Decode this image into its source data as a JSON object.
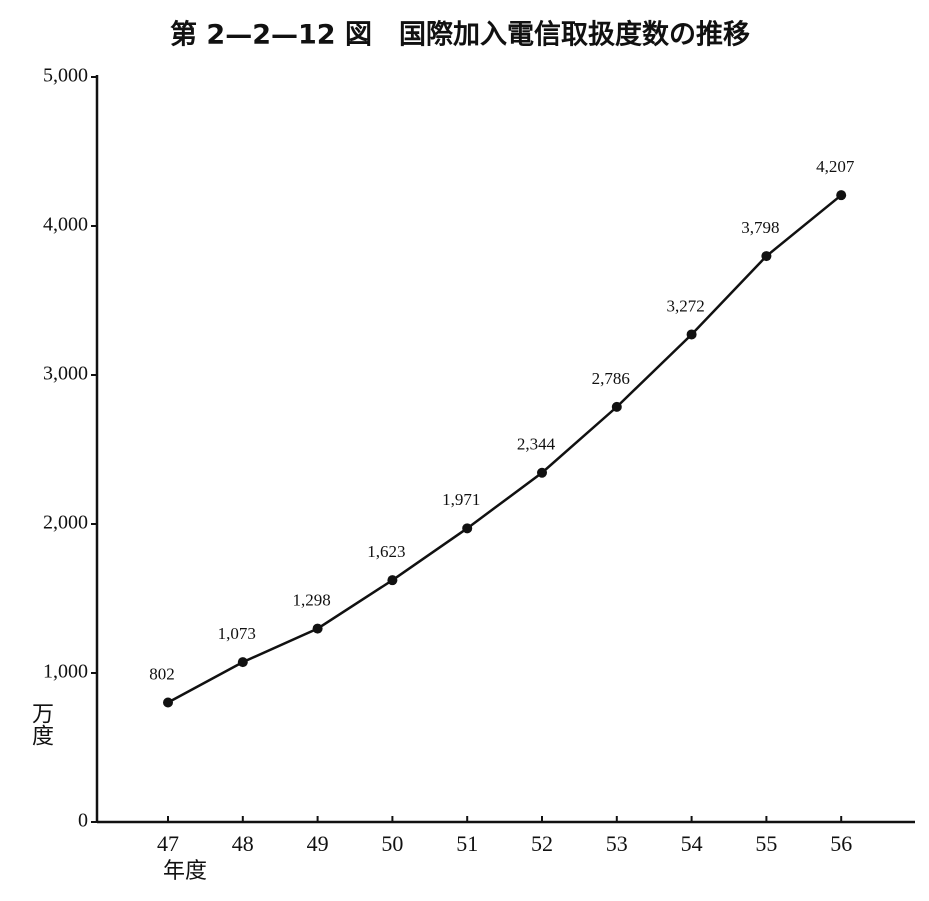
{
  "chart_data": {
    "type": "line",
    "title": "第 2—2—12 図　国際加入電信取扱度数の推移",
    "y_label": "万度",
    "x_label": "年度",
    "categories": [
      "47",
      "48",
      "49",
      "50",
      "51",
      "52",
      "53",
      "54",
      "55",
      "56"
    ],
    "series": [
      {
        "name": "国際加入電信取扱度数",
        "color": "#111111",
        "values": [
          802,
          1073,
          1298,
          1623,
          1971,
          2344,
          2786,
          3272,
          3798,
          4207
        ],
        "value_labels": [
          "802",
          "1,073",
          "1,298",
          "1,623",
          "1,971",
          "2,344",
          "2,786",
          "3,272",
          "3,798",
          "4,207"
        ]
      }
    ],
    "ylim": [
      0,
      5000
    ],
    "yticks": [
      0,
      {
        "value": 1000,
        "label": "1,000"
      },
      {
        "value": 2000,
        "label": "2,000"
      },
      {
        "value": 3000,
        "label": "3,000"
      },
      {
        "value": 4000,
        "label": "4,000"
      },
      {
        "value": 5000,
        "label": "5,000"
      }
    ]
  }
}
